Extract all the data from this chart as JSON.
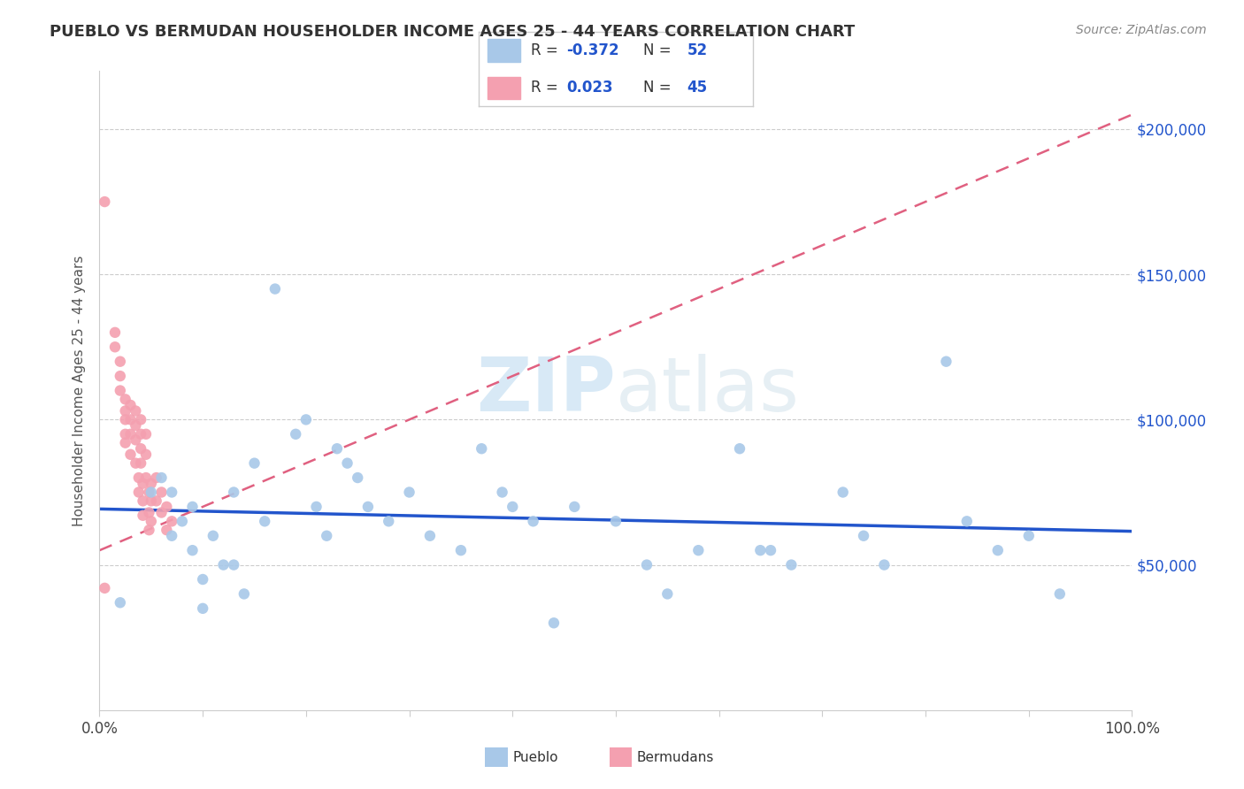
{
  "title": "PUEBLO VS BERMUDAN HOUSEHOLDER INCOME AGES 25 - 44 YEARS CORRELATION CHART",
  "source": "Source: ZipAtlas.com",
  "ylabel": "Householder Income Ages 25 - 44 years",
  "xlim": [
    0,
    1.0
  ],
  "ylim": [
    0,
    220000
  ],
  "ytick_values": [
    50000,
    100000,
    150000,
    200000
  ],
  "ytick_labels": [
    "$50,000",
    "$100,000",
    "$150,000",
    "$200,000"
  ],
  "legend_R_pueblo": "-0.372",
  "legend_N_pueblo": "52",
  "legend_R_bermudan": "0.023",
  "legend_N_bermudan": "45",
  "pueblo_color": "#a8c8e8",
  "bermudan_color": "#f4a0b0",
  "trendline_pueblo_color": "#2255cc",
  "trendline_bermudan_color": "#e06080",
  "watermark_zip": "ZIP",
  "watermark_atlas": "atlas",
  "pueblo_scatter": [
    [
      0.02,
      37000
    ],
    [
      0.05,
      75000
    ],
    [
      0.06,
      80000
    ],
    [
      0.07,
      75000
    ],
    [
      0.07,
      60000
    ],
    [
      0.08,
      65000
    ],
    [
      0.09,
      70000
    ],
    [
      0.09,
      55000
    ],
    [
      0.1,
      45000
    ],
    [
      0.1,
      35000
    ],
    [
      0.11,
      60000
    ],
    [
      0.12,
      50000
    ],
    [
      0.13,
      75000
    ],
    [
      0.13,
      50000
    ],
    [
      0.14,
      40000
    ],
    [
      0.15,
      85000
    ],
    [
      0.16,
      65000
    ],
    [
      0.17,
      145000
    ],
    [
      0.19,
      95000
    ],
    [
      0.2,
      100000
    ],
    [
      0.21,
      70000
    ],
    [
      0.22,
      60000
    ],
    [
      0.23,
      90000
    ],
    [
      0.24,
      85000
    ],
    [
      0.25,
      80000
    ],
    [
      0.26,
      70000
    ],
    [
      0.28,
      65000
    ],
    [
      0.3,
      75000
    ],
    [
      0.32,
      60000
    ],
    [
      0.35,
      55000
    ],
    [
      0.37,
      90000
    ],
    [
      0.39,
      75000
    ],
    [
      0.4,
      70000
    ],
    [
      0.42,
      65000
    ],
    [
      0.44,
      30000
    ],
    [
      0.46,
      70000
    ],
    [
      0.5,
      65000
    ],
    [
      0.53,
      50000
    ],
    [
      0.55,
      40000
    ],
    [
      0.58,
      55000
    ],
    [
      0.62,
      90000
    ],
    [
      0.64,
      55000
    ],
    [
      0.65,
      55000
    ],
    [
      0.67,
      50000
    ],
    [
      0.72,
      75000
    ],
    [
      0.74,
      60000
    ],
    [
      0.76,
      50000
    ],
    [
      0.82,
      120000
    ],
    [
      0.84,
      65000
    ],
    [
      0.87,
      55000
    ],
    [
      0.9,
      60000
    ],
    [
      0.93,
      40000
    ]
  ],
  "bermudan_scatter": [
    [
      0.005,
      175000
    ],
    [
      0.015,
      130000
    ],
    [
      0.015,
      125000
    ],
    [
      0.02,
      120000
    ],
    [
      0.02,
      115000
    ],
    [
      0.02,
      110000
    ],
    [
      0.025,
      107000
    ],
    [
      0.025,
      103000
    ],
    [
      0.025,
      100000
    ],
    [
      0.025,
      95000
    ],
    [
      0.025,
      92000
    ],
    [
      0.03,
      105000
    ],
    [
      0.03,
      100000
    ],
    [
      0.03,
      95000
    ],
    [
      0.03,
      88000
    ],
    [
      0.035,
      103000
    ],
    [
      0.035,
      98000
    ],
    [
      0.035,
      93000
    ],
    [
      0.035,
      85000
    ],
    [
      0.038,
      80000
    ],
    [
      0.038,
      75000
    ],
    [
      0.04,
      100000
    ],
    [
      0.04,
      95000
    ],
    [
      0.04,
      90000
    ],
    [
      0.04,
      85000
    ],
    [
      0.042,
      78000
    ],
    [
      0.042,
      72000
    ],
    [
      0.042,
      67000
    ],
    [
      0.045,
      95000
    ],
    [
      0.045,
      88000
    ],
    [
      0.045,
      80000
    ],
    [
      0.048,
      75000
    ],
    [
      0.048,
      68000
    ],
    [
      0.048,
      62000
    ],
    [
      0.05,
      78000
    ],
    [
      0.05,
      72000
    ],
    [
      0.05,
      65000
    ],
    [
      0.055,
      80000
    ],
    [
      0.055,
      72000
    ],
    [
      0.06,
      75000
    ],
    [
      0.06,
      68000
    ],
    [
      0.065,
      70000
    ],
    [
      0.065,
      62000
    ],
    [
      0.07,
      65000
    ],
    [
      0.005,
      42000
    ]
  ]
}
